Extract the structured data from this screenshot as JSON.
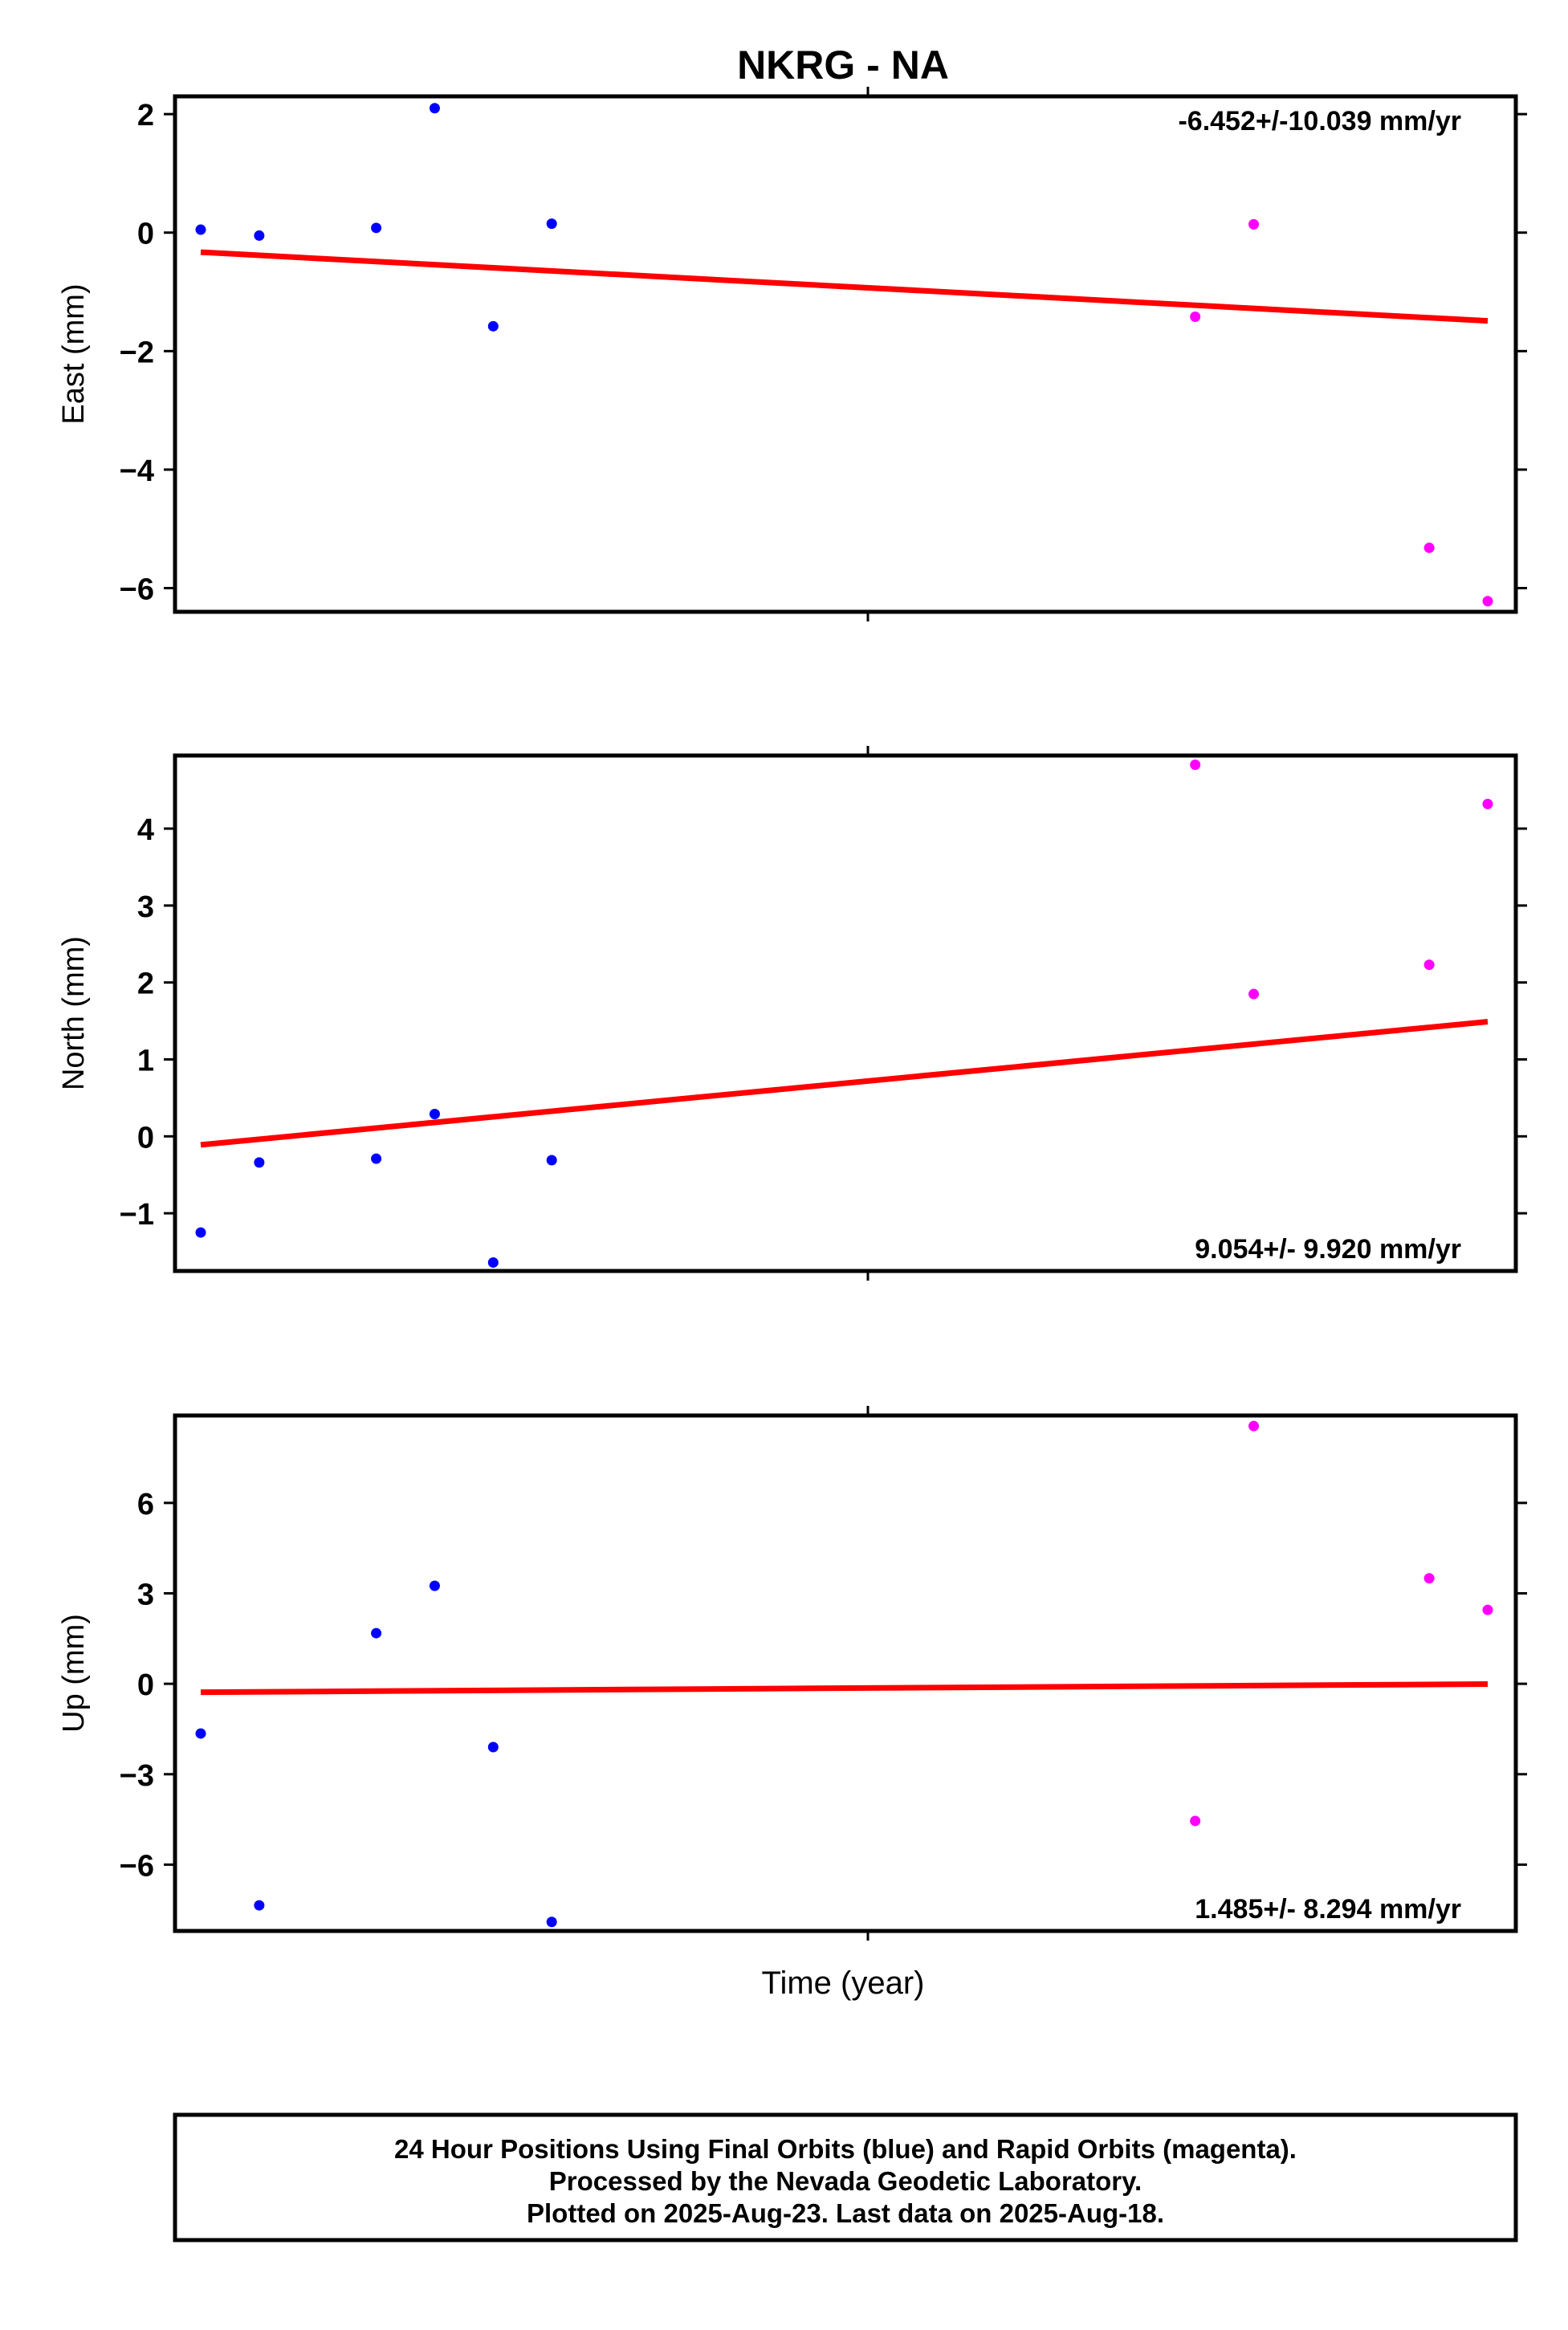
{
  "title": "NKRG - NA",
  "xlabel": "Time (year)",
  "colors": {
    "final": "#0000ff",
    "rapid": "#ff00ff",
    "trend": "#ff0000",
    "frame": "#000000"
  },
  "legend_series": {
    "final": "Final Orbits (blue)",
    "rapid": "Rapid Orbits (magenta)"
  },
  "chart_data": [
    {
      "type": "scatter",
      "panel": "east",
      "ylabel": "East (mm)",
      "rate_label": "-6.452+/-10.039 mm/yr",
      "rate_position": "top-right",
      "ylim": [
        -6.4,
        2.3
      ],
      "yticks": [
        2,
        0,
        -2,
        -4,
        -6
      ],
      "ytick_labels": [
        "2",
        "0",
        "−2",
        "−4",
        "−6"
      ],
      "x": [
        0,
        1,
        3,
        4,
        5,
        6,
        17,
        18,
        21,
        22
      ],
      "y": [
        0.05,
        -0.05,
        0.08,
        2.1,
        -1.58,
        0.15,
        -1.42,
        0.14,
        -5.32,
        -6.22
      ],
      "orbit": [
        "final",
        "final",
        "final",
        "final",
        "final",
        "final",
        "rapid",
        "rapid",
        "rapid",
        "rapid"
      ],
      "trend": {
        "x": [
          0,
          22
        ],
        "y": [
          -0.33,
          -1.49
        ]
      }
    },
    {
      "type": "scatter",
      "panel": "north",
      "ylabel": "North (mm)",
      "rate_label": "9.054+/- 9.920 mm/yr",
      "rate_position": "bottom-right",
      "ylim": [
        -1.75,
        4.95
      ],
      "yticks": [
        4,
        3,
        2,
        1,
        0,
        -1
      ],
      "ytick_labels": [
        "4",
        "3",
        "2",
        "1",
        "0",
        "−1"
      ],
      "x": [
        0,
        1,
        3,
        4,
        5,
        6,
        17,
        18,
        21,
        22
      ],
      "y": [
        -1.25,
        -0.34,
        -0.29,
        0.29,
        -1.64,
        -0.31,
        4.83,
        1.85,
        2.23,
        4.32
      ],
      "orbit": [
        "final",
        "final",
        "final",
        "final",
        "final",
        "final",
        "rapid",
        "rapid",
        "rapid",
        "rapid"
      ],
      "trend": {
        "x": [
          0,
          22
        ],
        "y": [
          -0.11,
          1.49
        ]
      }
    },
    {
      "type": "scatter",
      "panel": "up",
      "ylabel": "Up (mm)",
      "rate_label": "1.485+/- 8.294 mm/yr",
      "rate_position": "bottom-right",
      "ylim": [
        -8.2,
        8.9
      ],
      "yticks": [
        6,
        3,
        0,
        -3,
        -6
      ],
      "ytick_labels": [
        "6",
        "3",
        "0",
        "−3",
        "−6"
      ],
      "x": [
        0,
        1,
        3,
        4,
        5,
        6,
        17,
        18,
        21,
        22
      ],
      "y": [
        -1.65,
        -7.35,
        1.68,
        3.25,
        -2.1,
        -7.9,
        -4.55,
        8.55,
        3.5,
        2.45
      ],
      "orbit": [
        "final",
        "final",
        "final",
        "final",
        "final",
        "final",
        "rapid",
        "rapid",
        "rapid",
        "rapid"
      ],
      "trend": {
        "x": [
          0,
          22
        ],
        "y": [
          -0.28,
          -0.01
        ]
      }
    }
  ],
  "footer": {
    "line1": "24 Hour Positions Using Final Orbits (blue) and Rapid Orbits (magenta).",
    "line2": "Processed by the Nevada Geodetic Laboratory.",
    "line3": "Plotted on 2025-Aug-23. Last data on 2025-Aug-18."
  }
}
